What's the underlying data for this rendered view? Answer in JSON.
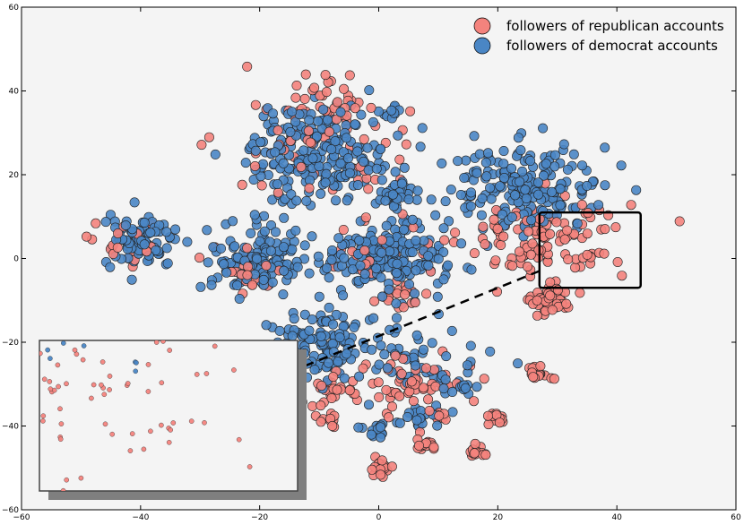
{
  "chart_data": {
    "type": "scatter",
    "title": "",
    "xlabel": "",
    "ylabel": "",
    "xlim": [
      -60,
      60
    ],
    "ylim": [
      -60,
      60
    ],
    "xticks": [
      -60,
      -40,
      -20,
      0,
      20,
      40,
      60
    ],
    "yticks": [
      -60,
      -40,
      -20,
      0,
      20,
      40,
      60
    ],
    "xtick_labels": [
      "−60",
      "−40",
      "−20",
      "0",
      "20",
      "40",
      "60"
    ],
    "ytick_labels": [
      "−60",
      "−40",
      "−20",
      "0",
      "20",
      "40",
      "60"
    ],
    "grid": false,
    "legend_position": "top-right",
    "series": [
      {
        "name": "followers of republican accounts",
        "color": "#f4837d",
        "clusters": [
          {
            "cx": -10,
            "cy": 38,
            "sx": 5,
            "sy": 4,
            "n": 40
          },
          {
            "cx": -11,
            "cy": 25,
            "sx": 8,
            "sy": 6,
            "n": 45
          },
          {
            "cx": 28,
            "cy": 5,
            "sx": 7,
            "sy": 5,
            "n": 110
          },
          {
            "cx": 29,
            "cy": -10,
            "sx": 1.6,
            "sy": 1.6,
            "n": 60
          },
          {
            "cx": 27,
            "cy": -27,
            "sx": 1.2,
            "sy": 1.0,
            "n": 18
          },
          {
            "cx": 5,
            "cy": -30,
            "sx": 5,
            "sy": 4,
            "n": 60
          },
          {
            "cx": -8,
            "cy": -32,
            "sx": 3,
            "sy": 2,
            "n": 20
          },
          {
            "cx": 0,
            "cy": -50,
            "sx": 1.2,
            "sy": 1.0,
            "n": 18
          },
          {
            "cx": 8,
            "cy": -44,
            "sx": 1.0,
            "sy": 0.9,
            "n": 15
          },
          {
            "cx": 17,
            "cy": -46,
            "sx": 1.0,
            "sy": 0.9,
            "n": 15
          },
          {
            "cx": 20,
            "cy": -38,
            "sx": 1.0,
            "sy": 0.9,
            "n": 15
          },
          {
            "cx": -8,
            "cy": -39,
            "sx": 1.0,
            "sy": 0.9,
            "n": 10
          },
          {
            "cx": 10,
            "cy": -38,
            "sx": 1.0,
            "sy": 0.9,
            "n": 10
          },
          {
            "cx": -22,
            "cy": -3,
            "sx": 3,
            "sy": 3,
            "n": 20
          },
          {
            "cx": 3,
            "cy": -8,
            "sx": 3,
            "sy": 2,
            "n": 20
          },
          {
            "cx": -42,
            "cy": 3,
            "sx": 3,
            "sy": 3,
            "n": 20
          },
          {
            "cx": 2,
            "cy": 4,
            "sx": 6,
            "sy": 5,
            "n": 25
          }
        ]
      },
      {
        "name": "followers of democrat accounts",
        "color": "#4a86c5",
        "clusters": [
          {
            "cx": -10,
            "cy": 25,
            "sx": 6,
            "sy": 6,
            "n": 220
          },
          {
            "cx": 25,
            "cy": 17,
            "sx": 7,
            "sy": 5,
            "n": 190
          },
          {
            "cx": 1,
            "cy": 0,
            "sx": 5,
            "sy": 4,
            "n": 200
          },
          {
            "cx": -20,
            "cy": 0,
            "sx": 4,
            "sy": 4,
            "n": 130
          },
          {
            "cx": -40,
            "cy": 4,
            "sx": 3,
            "sy": 3,
            "n": 90
          },
          {
            "cx": 3,
            "cy": 15,
            "sx": 2,
            "sy": 2,
            "n": 30
          },
          {
            "cx": -9,
            "cy": -20,
            "sx": 5,
            "sy": 4,
            "n": 110
          },
          {
            "cx": 5,
            "cy": -27,
            "sx": 6,
            "sy": 5,
            "n": 60
          },
          {
            "cx": 0,
            "cy": -41,
            "sx": 1.3,
            "sy": 1.0,
            "n": 15
          },
          {
            "cx": 14,
            "cy": -31,
            "sx": 1.0,
            "sy": 0.9,
            "n": 12
          },
          {
            "cx": 7,
            "cy": -38,
            "sx": 1.5,
            "sy": 1.0,
            "n": 15
          },
          {
            "cx": 2,
            "cy": 35,
            "sx": 1.0,
            "sy": 1.5,
            "n": 10
          }
        ]
      }
    ],
    "annotations": [
      {
        "type": "highlight-box",
        "x_range": [
          27,
          44
        ],
        "y_range": [
          -7,
          11
        ]
      },
      {
        "type": "connector",
        "style": "dashed",
        "from": [
          27,
          -3
        ],
        "to": [
          -13,
          -26
        ]
      }
    ]
  }
}
